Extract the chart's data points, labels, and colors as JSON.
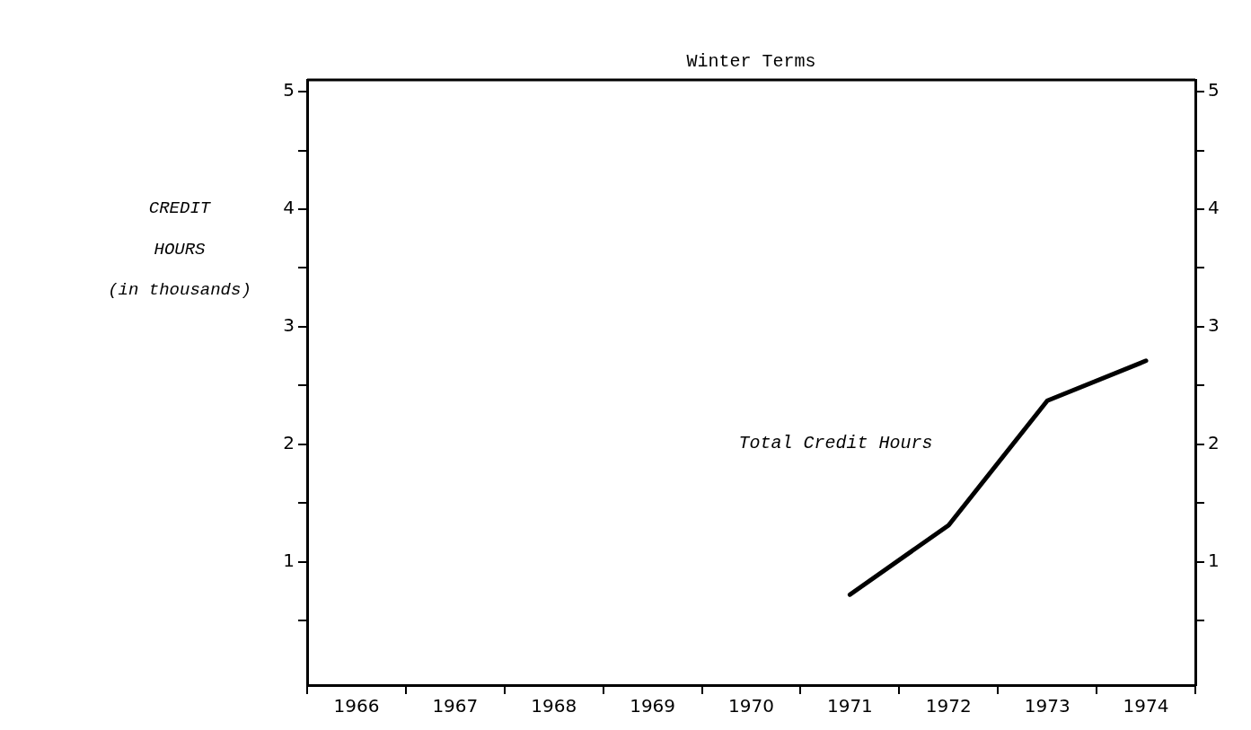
{
  "chart_data": {
    "type": "line",
    "title": "Winter Terms",
    "ylabel": "CREDIT\nHOURS\n(in thousands)",
    "categories": [
      "1966",
      "1967",
      "1968",
      "1969",
      "1970",
      "1971",
      "1972",
      "1973",
      "1974"
    ],
    "series": [
      {
        "color": "#000000",
        "values": [
          null,
          null,
          null,
          null,
          null,
          0.72,
          1.31,
          2.37,
          2.71
        ]
      }
    ],
    "ylim": [
      -0.05,
      5.1
    ],
    "yticks": [
      {
        "value": 0.5,
        "label": null
      },
      1,
      {
        "value": 1.5,
        "label": null
      },
      2,
      {
        "value": 2.5,
        "label": null
      },
      3,
      {
        "value": 3.5,
        "label": null
      },
      4,
      {
        "value": 4.5,
        "label": null
      },
      5
    ],
    "y2lim": [
      -0.05,
      5.1
    ],
    "y2ticks": [
      {
        "value": 0.5,
        "label": null
      },
      1,
      {
        "value": 1.5,
        "label": null
      },
      2,
      {
        "value": 2.5,
        "label": null
      },
      3,
      {
        "value": 3.5,
        "label": null
      },
      4,
      {
        "value": 4.5,
        "label": null
      },
      5
    ],
    "annotations": [
      "Total Credit Hours"
    ],
    "grid": false,
    "legend": false,
    "marker": "none",
    "line_style": "solid"
  }
}
